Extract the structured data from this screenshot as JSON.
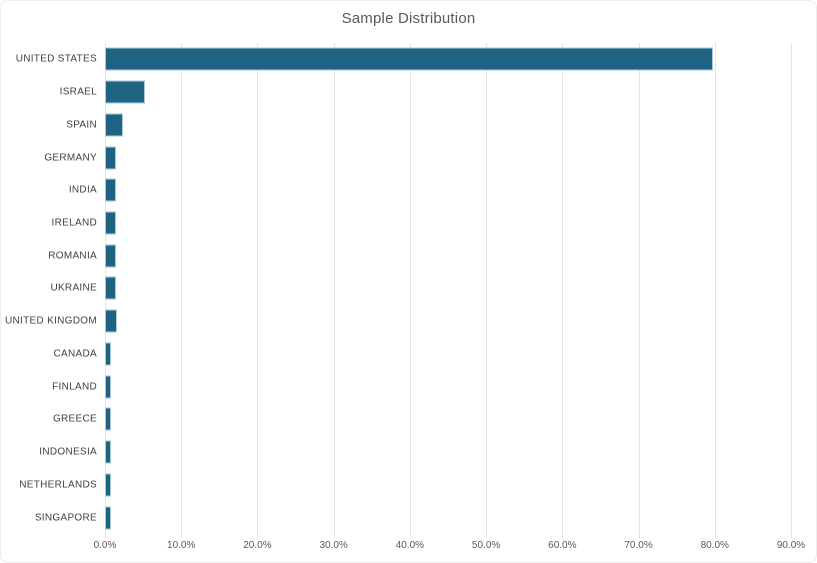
{
  "chart_data": {
    "type": "bar",
    "orientation": "horizontal",
    "title": "Sample Distribution",
    "categories": [
      "UNITED STATES",
      "ISRAEL",
      "SPAIN",
      "GERMANY",
      "INDIA",
      "IRELAND",
      "ROMANIA",
      "UKRAINE",
      "UNITED KINGDOM",
      "CANADA",
      "FINLAND",
      "GREECE",
      "INDONESIA",
      "NETHERLANDS",
      "SINGAPORE"
    ],
    "values": [
      79.8,
      5.2,
      2.4,
      1.5,
      1.5,
      1.5,
      1.5,
      1.5,
      1.6,
      0.8,
      0.8,
      0.8,
      0.8,
      0.8,
      0.8
    ],
    "value_unit": "%",
    "x_tick_labels": [
      "0.0%",
      "10.0%",
      "20.0%",
      "30.0%",
      "40.0%",
      "50.0%",
      "60.0%",
      "70.0%",
      "80.0%",
      "90.0%"
    ],
    "xlim": [
      0,
      90
    ],
    "grid": true,
    "legend": "none",
    "colors": {
      "bar_fill": "#1F6382",
      "bar_border": "#A9C9D7",
      "gridline": "#E4E4E4",
      "title_text": "#595959",
      "axis_text": "#595959",
      "category_text": "#404040",
      "background": "#FFFFFF"
    }
  }
}
